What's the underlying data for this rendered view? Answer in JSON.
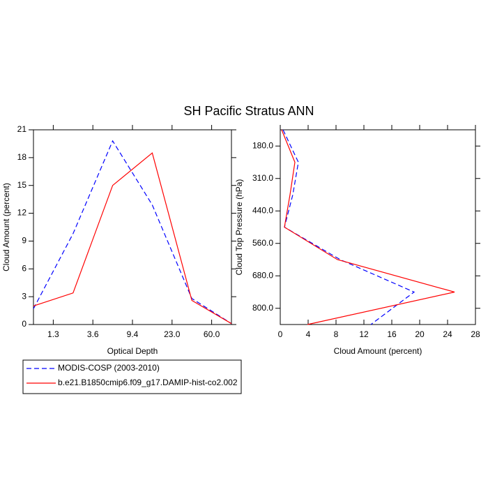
{
  "chart_data": [
    {
      "type": "line",
      "title": "SH Pacific Stratus ANN",
      "x_label": "Optical Depth",
      "y_label": "Cloud Amount (percent)",
      "x": [
        0,
        1,
        2,
        3,
        4,
        5
      ],
      "xlim": [
        0,
        5
      ],
      "xticks": [
        {
          "value": 0.5,
          "label": "1.3"
        },
        {
          "value": 1.5,
          "label": "3.6"
        },
        {
          "value": 2.5,
          "label": "9.4"
        },
        {
          "value": 3.5,
          "label": "23.0"
        },
        {
          "value": 4.5,
          "label": "60.0"
        }
      ],
      "ylim": [
        0,
        21
      ],
      "yticks": [
        0,
        3,
        6,
        9,
        12,
        15,
        18,
        21
      ],
      "series": [
        {
          "name": "MODIS-COSP (2003-2010)",
          "color": "#0000ff",
          "dashed": true,
          "values": [
            1.7,
            9.8,
            19.8,
            12.9,
            2.8,
            0.1
          ]
        },
        {
          "name": "b.e21.B1850cmip6.f09_g17.DAMIP-hist-co2.002",
          "color": "#ff0000",
          "dashed": false,
          "values": [
            2.0,
            3.4,
            15.0,
            18.5,
            2.6,
            0.1
          ]
        }
      ]
    },
    {
      "type": "line",
      "orientation": "horizontal",
      "x_label": "Cloud Amount (percent)",
      "y_label": "Cloud Top Pressure (hPa)",
      "xlim": [
        0,
        28
      ],
      "xticks": [
        0,
        4,
        8,
        12,
        16,
        20,
        24,
        28
      ],
      "y": [
        0,
        1,
        2,
        3,
        4,
        5,
        6
      ],
      "ylim": [
        0,
        6
      ],
      "y_reversed": true,
      "yticks": [
        {
          "value": 0.5,
          "label": "180.0"
        },
        {
          "value": 1.5,
          "label": "310.0"
        },
        {
          "value": 2.5,
          "label": "440.0"
        },
        {
          "value": 3.5,
          "label": "560.0"
        },
        {
          "value": 4.5,
          "label": "680.0"
        },
        {
          "value": 5.5,
          "label": "800.0"
        }
      ],
      "series": [
        {
          "color": "#0000ff",
          "dashed": true,
          "values": [
            0.4,
            2.6,
            1.8,
            0.6,
            8.6,
            19.2,
            13.0
          ]
        },
        {
          "color": "#ff0000",
          "dashed": false,
          "values": [
            0.2,
            2.1,
            1.4,
            0.6,
            8.2,
            25.0,
            3.9
          ]
        }
      ]
    }
  ]
}
